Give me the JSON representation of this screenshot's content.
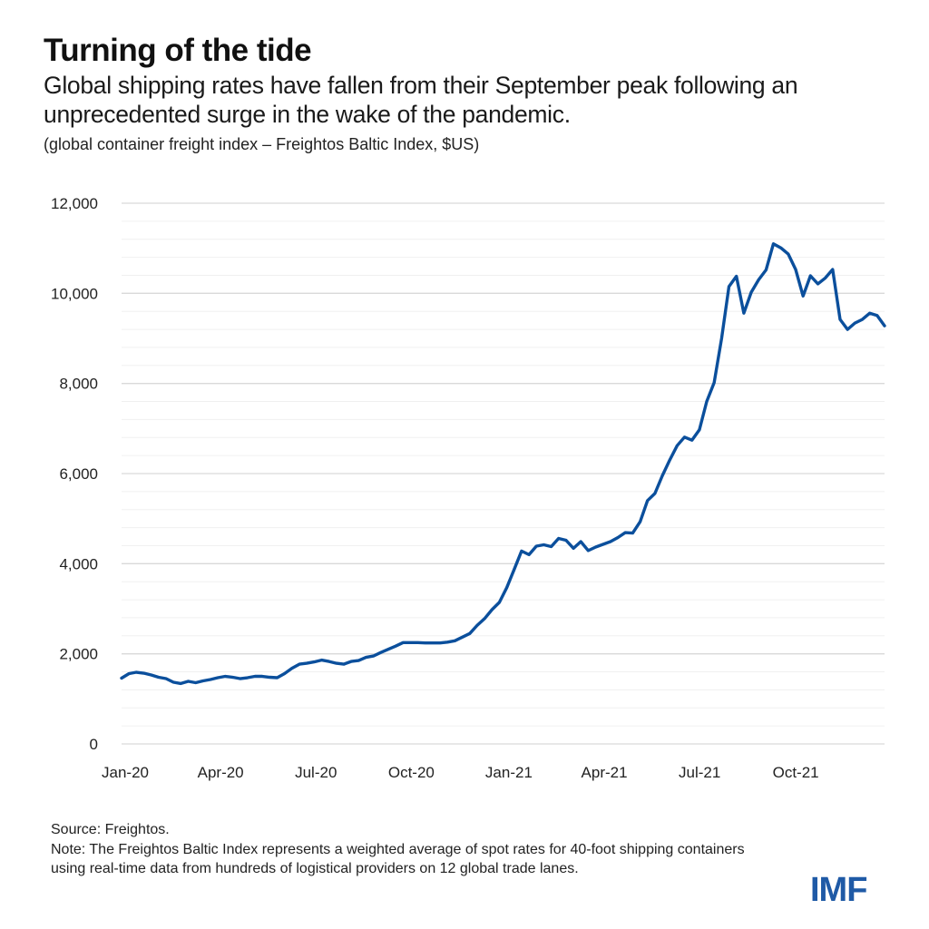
{
  "header": {
    "title": "Turning of the tide",
    "subtitle": "Global shipping rates have fallen from their September peak following an unprecedented surge in the wake of the pandemic.",
    "units": "(global container freight index – Freightos Baltic Index, $US)"
  },
  "footer": {
    "source": "Source: Freightos.",
    "note": "Note: The Freightos Baltic Index represents a weighted average of spot rates for 40-foot shipping containers using real-time data from hundreds of logistical providers on 12 global trade lanes."
  },
  "logo": {
    "text": "IMF",
    "color": "#1f5aa6"
  },
  "colors": {
    "line": "#0b4f9c",
    "grid_major": "#d9d9d9",
    "grid_minor": "#f0f0f0"
  },
  "chart_data": {
    "type": "line",
    "title": "Turning of the tide",
    "xlabel": "",
    "ylabel": "",
    "ylim": [
      0,
      12000
    ],
    "yticks": [
      0,
      2000,
      4000,
      6000,
      8000,
      10000,
      12000
    ],
    "ytick_labels": [
      "0",
      "2,000",
      "4,000",
      "6,000",
      "8,000",
      "10,000",
      "12,000"
    ],
    "ytick_minor_step": 400,
    "xticks": [
      {
        "label": "Jan-20",
        "week": 0
      },
      {
        "label": "Apr-20",
        "week": 13
      },
      {
        "label": "Jul-20",
        "week": 26
      },
      {
        "label": "Oct-20",
        "week": 39
      },
      {
        "label": "Jan-21",
        "week": 52.3
      },
      {
        "label": "Apr-21",
        "week": 65.3
      },
      {
        "label": "Jul-21",
        "week": 78.3
      },
      {
        "label": "Oct-21",
        "week": 91.4
      }
    ],
    "x_range_weeks": [
      0,
      104
    ],
    "grid": true,
    "legend": "none",
    "series": [
      {
        "name": "Freightos Baltic Index ($US)",
        "frequency": "weekly, Jan 2020 – Dec 2021",
        "values": [
          1460,
          1560,
          1590,
          1570,
          1530,
          1480,
          1450,
          1370,
          1340,
          1390,
          1360,
          1400,
          1430,
          1470,
          1500,
          1480,
          1450,
          1470,
          1500,
          1500,
          1480,
          1470,
          1560,
          1680,
          1770,
          1790,
          1820,
          1860,
          1830,
          1790,
          1770,
          1830,
          1850,
          1920,
          1950,
          2030,
          2100,
          2170,
          2250,
          2250,
          2250,
          2240,
          2240,
          2240,
          2260,
          2290,
          2370,
          2450,
          2630,
          2780,
          2980,
          3140,
          3470,
          3870,
          4280,
          4200,
          4390,
          4420,
          4380,
          4560,
          4520,
          4340,
          4490,
          4290,
          4370,
          4430,
          4490,
          4580,
          4690,
          4680,
          4930,
          5400,
          5560,
          5950,
          6300,
          6620,
          6810,
          6740,
          6970,
          7600,
          8020,
          9000,
          10150,
          10380,
          9560,
          10020,
          10300,
          10520,
          11100,
          11010,
          10870,
          10530,
          9940,
          10390,
          10210,
          10340,
          10530,
          9420,
          9200,
          9340,
          9420,
          9560,
          9510,
          9280
        ]
      }
    ]
  }
}
